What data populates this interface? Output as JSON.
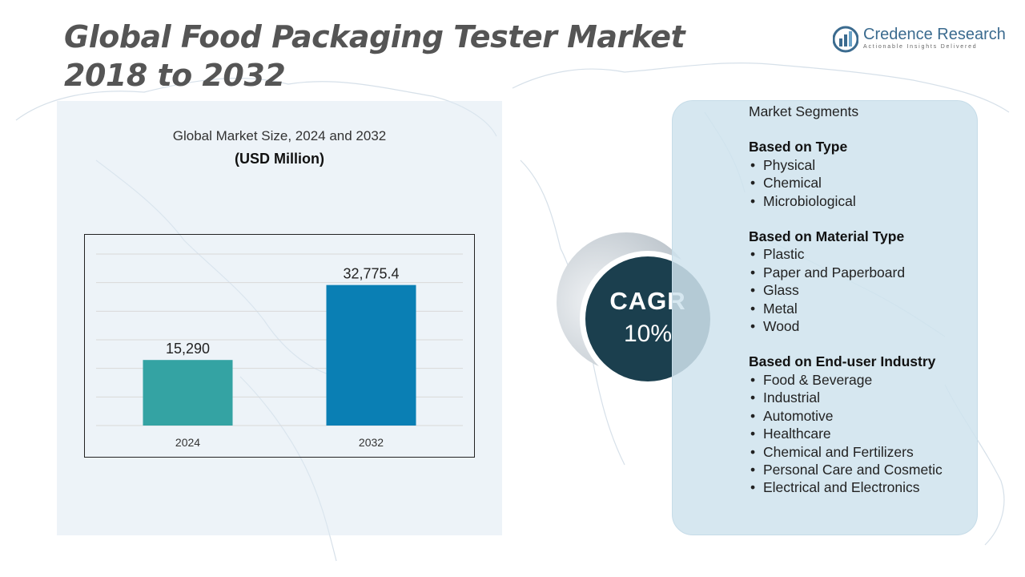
{
  "title": {
    "line1": "Global Food Packaging Tester Market",
    "line2": "2018 to 2032"
  },
  "logo": {
    "name": "Credence Research",
    "tagline": "Actionable Insights Delivered",
    "icon": "credence-logo-icon",
    "color": "#3b6b8f"
  },
  "chart_header": {
    "title": "Global Market Size, 2024 and 2032",
    "unit": "(USD Million)"
  },
  "chart_data": {
    "type": "bar",
    "title": "Global Market Size, 2024 and 2032",
    "ylabel": "",
    "xlabel": "",
    "categories": [
      "2024",
      "2032"
    ],
    "values": [
      15290,
      32775.4
    ],
    "value_labels": [
      "15,290",
      "32,775.4"
    ],
    "colors": [
      "#34a3a3",
      "#0a7fb4"
    ],
    "ylim": [
      0,
      40000
    ],
    "grid": true,
    "legend": "none"
  },
  "cagr": {
    "label": "CAGR",
    "value": "10%"
  },
  "segments": {
    "title": "Market Segments",
    "groups": [
      {
        "heading": "Based on Type",
        "items": [
          "Physical",
          "Chemical",
          "Microbiological"
        ]
      },
      {
        "heading": "Based on Material Type",
        "items": [
          "Plastic",
          "Paper and Paperboard",
          "Glass",
          "Metal",
          "Wood"
        ]
      },
      {
        "heading": "Based on End-user Industry",
        "items": [
          "Food & Beverage",
          "Industrial",
          "Automotive",
          "Healthcare",
          "Chemical and Fertilizers",
          "Personal Care and Cosmetic",
          "Electrical and Electronics"
        ]
      }
    ]
  }
}
